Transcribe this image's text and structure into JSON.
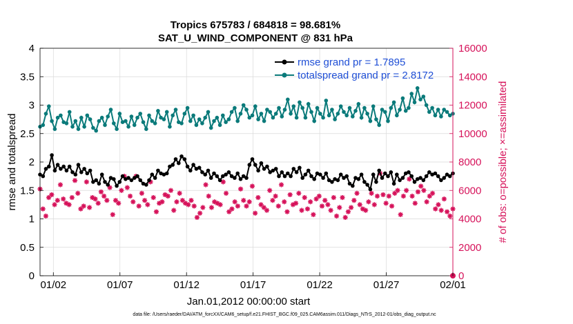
{
  "colors": {
    "rmse": "#000000",
    "spread": "#0a7a7a",
    "obs": "#d6125a",
    "legend_text": "#1f4fd6"
  },
  "chart_data": {
    "type": "line",
    "title": "Tropics 675783 / 684818 = 98.681%",
    "subtitle": "SAT_U_WIND_COMPONENT @ 831 hPa",
    "xlabel": "Jan.01,2012 00:00:00 start",
    "ylabel": "rmse and totalspread",
    "ylabel_right": "# of obs: o=possible; ×=assimilated",
    "xlim": [
      0,
      31
    ],
    "ylim": [
      0,
      4
    ],
    "ylim_right": [
      0,
      16000
    ],
    "xticks": [
      {
        "value": 1,
        "label": "01/02"
      },
      {
        "value": 6,
        "label": "01/07"
      },
      {
        "value": 11,
        "label": "01/12"
      },
      {
        "value": 16,
        "label": "01/17"
      },
      {
        "value": 21,
        "label": "01/22"
      },
      {
        "value": 26,
        "label": "01/27"
      },
      {
        "value": 31,
        "label": "02/01"
      }
    ],
    "yticks": [
      "0",
      "0.5",
      "1",
      "1.5",
      "2",
      "2.5",
      "3",
      "3.5",
      "4"
    ],
    "yticks_right": [
      "0",
      "2000",
      "4000",
      "6000",
      "8000",
      "10000",
      "12000",
      "14000",
      "16000"
    ],
    "legend": [
      {
        "label": "rmse grand pr = 1.7895",
        "series": "rmse"
      },
      {
        "label": "totalspread grand pr = 2.8172",
        "series": "spread"
      }
    ],
    "legend_position": "top-right",
    "series": [
      {
        "name": "rmse",
        "axis": "left",
        "marker": "circle",
        "values": [
          1.78,
          1.75,
          1.88,
          1.92,
          2.12,
          1.85,
          1.95,
          1.88,
          1.92,
          1.85,
          1.92,
          1.82,
          1.78,
          1.95,
          1.82,
          1.88,
          1.8,
          1.85,
          1.65,
          1.68,
          1.62,
          1.78,
          1.65,
          1.6,
          1.72,
          1.7,
          1.58,
          1.65,
          1.75,
          1.7,
          1.72,
          1.68,
          1.72,
          1.75,
          1.68,
          1.62,
          1.6,
          1.68,
          1.78,
          1.72,
          1.85,
          1.8,
          1.78,
          1.8,
          1.92,
          1.95,
          2.05,
          1.98,
          2.1,
          2.05,
          1.92,
          1.85,
          1.95,
          1.88,
          1.9,
          1.82,
          1.78,
          1.85,
          1.72,
          1.8,
          1.75,
          1.68,
          1.75,
          1.78,
          1.82,
          1.75,
          1.72,
          1.8,
          1.7,
          1.75,
          1.72,
          1.95,
          2.05,
          1.95,
          1.85,
          1.98,
          1.88,
          1.92,
          1.82,
          1.85,
          1.88,
          1.75,
          1.82,
          1.75,
          1.8,
          1.75,
          1.88,
          1.82,
          1.9,
          1.72,
          1.78,
          1.85,
          1.75,
          1.7,
          1.8,
          1.78,
          1.72,
          1.8,
          1.68,
          1.65,
          1.7,
          1.68,
          1.78,
          1.72,
          1.75,
          1.62,
          1.58,
          1.72,
          1.7,
          1.78,
          1.65,
          1.6,
          1.52,
          1.78,
          1.65,
          1.85,
          1.72,
          1.8,
          1.75,
          1.82,
          1.62,
          1.78,
          1.68,
          1.72,
          1.8,
          1.82,
          1.75,
          1.65,
          1.7,
          1.72,
          1.68,
          1.75,
          1.82,
          1.78,
          1.8,
          1.75,
          1.68,
          1.72,
          1.78,
          1.75,
          1.8
        ]
      },
      {
        "name": "totalspread",
        "axis": "left",
        "marker": "circle",
        "values": [
          2.62,
          2.65,
          2.85,
          2.98,
          2.72,
          2.58,
          2.78,
          2.82,
          2.7,
          2.68,
          2.88,
          2.62,
          2.72,
          2.58,
          2.78,
          2.62,
          2.82,
          2.75,
          2.6,
          2.55,
          2.72,
          2.78,
          2.65,
          2.8,
          2.92,
          2.68,
          2.58,
          2.85,
          2.7,
          2.72,
          2.62,
          2.8,
          2.65,
          2.78,
          2.85,
          2.7,
          2.58,
          2.82,
          2.72,
          2.68,
          2.9,
          2.78,
          2.75,
          2.88,
          2.62,
          2.82,
          2.92,
          2.7,
          2.68,
          2.85,
          2.95,
          2.72,
          2.82,
          2.65,
          2.75,
          2.68,
          2.78,
          2.88,
          2.6,
          2.72,
          2.78,
          2.65,
          2.82,
          2.7,
          2.75,
          2.88,
          2.95,
          2.72,
          2.85,
          3.0,
          2.92,
          2.78,
          2.82,
          2.98,
          2.75,
          2.85,
          2.72,
          2.92,
          2.88,
          2.78,
          2.85,
          2.95,
          2.8,
          2.92,
          3.1,
          2.85,
          2.98,
          2.78,
          3.05,
          2.95,
          2.78,
          3.02,
          2.88,
          2.72,
          2.95,
          2.85,
          2.78,
          3.08,
          2.82,
          2.92,
          2.75,
          2.85,
          2.98,
          2.88,
          2.82,
          2.95,
          2.8,
          2.9,
          3.02,
          2.78,
          2.95,
          2.85,
          2.72,
          2.98,
          2.75,
          2.65,
          2.92,
          2.88,
          2.72,
          2.95,
          3.05,
          2.82,
          2.92,
          3.12,
          2.9,
          2.95,
          3.2,
          3.05,
          3.3,
          3.1,
          3.15,
          3.0,
          2.88,
          2.95,
          2.82,
          2.92,
          2.8,
          2.92,
          2.88,
          2.82,
          2.85
        ]
      },
      {
        "name": "# obs assimilated",
        "axis": "right",
        "marker": "star",
        "values": [
          6100,
          4700,
          4200,
          5500,
          5700,
          5000,
          5300,
          6400,
          5400,
          5100,
          5000,
          5500,
          6700,
          5800,
          4700,
          4900,
          6600,
          4800,
          5500,
          5400,
          5100,
          5900,
          5600,
          5300,
          6200,
          4300,
          5300,
          5100,
          6000,
          7000,
          6200,
          5600,
          5200,
          7000,
          4900,
          5800,
          5300,
          5000,
          6600,
          5500,
          4500,
          5100,
          5200,
          5700,
          5600,
          6000,
          4600,
          5200,
          5800,
          5300,
          5100,
          5000,
          5300,
          4900,
          4100,
          4400,
          4800,
          6400,
          5600,
          4800,
          5200,
          5100,
          5000,
          6600,
          5800,
          4500,
          4700,
          5200,
          4900,
          6100,
          5300,
          4900,
          5200,
          6300,
          4400,
          5500,
          5000,
          4800,
          4600,
          6000,
          5300,
          5600,
          4900,
          6400,
          5200,
          4500,
          5700,
          5000,
          5100,
          5800,
          4600,
          5500,
          4700,
          5200,
          4300,
          5400,
          5600,
          4900,
          5300,
          5000,
          4600,
          5500,
          4200,
          4800,
          5500,
          4100,
          4500,
          4800,
          5300,
          5800,
          5000,
          4700,
          4600,
          5200,
          5800,
          5000,
          5600,
          7200,
          5700,
          5100,
          5600,
          4900,
          5800,
          6000,
          4300,
          5600,
          6000,
          6800,
          5600,
          5100,
          5900,
          6300,
          6000,
          5200,
          5600,
          5800,
          4700,
          5000,
          4600,
          5400,
          4500,
          4200,
          4700
        ]
      },
      {
        "name": "# obs possible",
        "axis": "right",
        "marker": "circle",
        "values": [
          0
        ]
      }
    ]
  },
  "footer": "data file: /Users/raeder/DAI/ATM_forcXX/CAM6_setup/f.e21.FHIST_BGC.f09_025.CAM6assim.011/Diags_NTrS_2012-01/obs_diag_output.nc"
}
